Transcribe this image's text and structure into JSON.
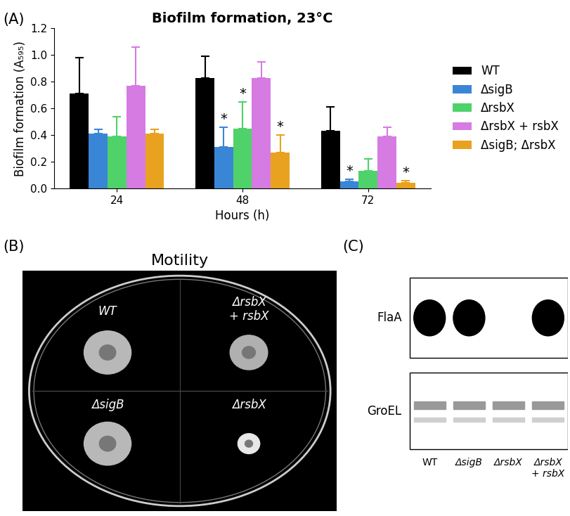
{
  "chart_data": {
    "type": "bar",
    "title": "Biofilm formation, 23°C",
    "x_label": "Hours (h)",
    "y_label": "Biofilm formation (A₅₉₅)",
    "categories": [
      "24",
      "48",
      "72"
    ],
    "series": [
      {
        "name": "WT",
        "color": "#000000",
        "values": [
          0.71,
          0.83,
          0.43
        ],
        "errors": [
          0.27,
          0.16,
          0.18
        ],
        "significance": [
          null,
          null,
          null
        ]
      },
      {
        "name": "ΔsigB",
        "color": "#3a86d6",
        "values": [
          0.41,
          0.31,
          0.05
        ],
        "errors": [
          0.03,
          0.15,
          0.02
        ],
        "significance": [
          null,
          "*",
          "*"
        ]
      },
      {
        "name": "ΔrsbX",
        "color": "#4fd26a",
        "values": [
          0.39,
          0.45,
          0.13
        ],
        "errors": [
          0.15,
          0.2,
          0.09
        ],
        "significance": [
          null,
          "*",
          null
        ]
      },
      {
        "name": "ΔrsbX + rsbX",
        "color": "#d67be2",
        "values": [
          0.77,
          0.83,
          0.39
        ],
        "errors": [
          0.29,
          0.12,
          0.07
        ],
        "significance": [
          null,
          null,
          null
        ]
      },
      {
        "name": "ΔsigB; ΔrsbX",
        "color": "#e9a21f",
        "values": [
          0.41,
          0.27,
          0.04
        ],
        "errors": [
          0.03,
          0.13,
          0.02
        ],
        "significance": [
          null,
          "*",
          "*"
        ]
      }
    ],
    "ylim": [
      0,
      1.2
    ],
    "yticks": [
      {
        "value": 0,
        "label": "0.0"
      },
      {
        "value": 0.2,
        "label": "0.2"
      },
      {
        "value": 0.4,
        "label": "0.4"
      },
      {
        "value": 0.6,
        "label": "0.6"
      },
      {
        "value": 0.8,
        "label": "0.8"
      },
      {
        "value": 1.0,
        "label": "1.0"
      },
      {
        "value": 1.2,
        "label": "1.2"
      }
    ],
    "legend": "right",
    "grid": false
  },
  "figure": {
    "panel_labels": [
      "(A)",
      "(B)",
      "(C)"
    ],
    "motility": {
      "title": "Motility",
      "strains": [
        "WT",
        "ΔrsbX\n+ rsbX",
        "ΔsigB",
        "ΔrsbX"
      ]
    },
    "western_blot": {
      "rows": [
        "FlaA",
        "GroEL"
      ],
      "lanes": [
        "WT",
        "ΔsigB",
        "ΔrsbX",
        "ΔrsbX\n+ rsbX"
      ],
      "flaA_band": [
        true,
        true,
        false,
        true
      ]
    }
  }
}
